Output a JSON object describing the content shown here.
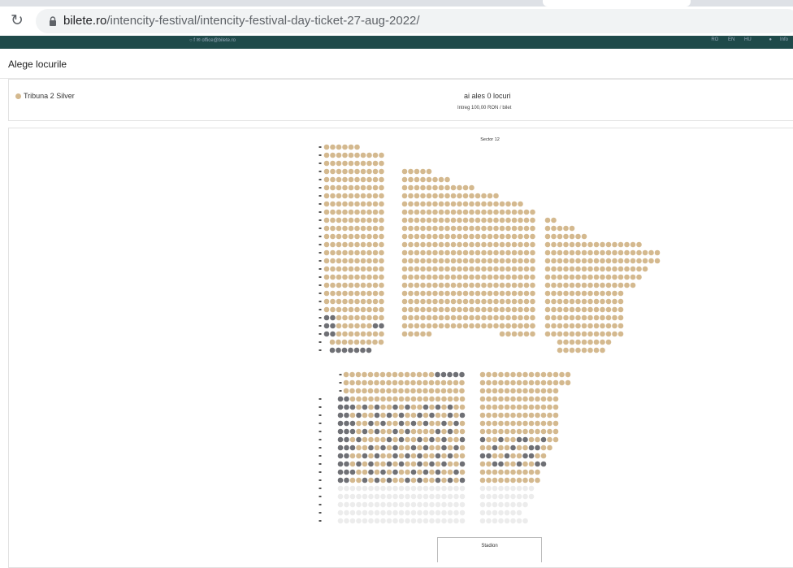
{
  "browser": {
    "url_host": "bilete.ro",
    "url_path": "/intencity-festival/intencity-festival-day-ticket-27-aug-2022/"
  },
  "site": {
    "social_email": "office@bilete.ro",
    "langs": [
      "RO",
      "EN",
      "HU"
    ],
    "info": "Info"
  },
  "page": {
    "title": "Alege locurile",
    "category": "Tribuna 2 Silver",
    "selected": "ai ales 0 locuri",
    "price": "Intreg 100,00 RON / bilet"
  },
  "map": {
    "sector": "Sector 12",
    "stage": "Stadion"
  },
  "colors": {
    "available": "#d4b98f",
    "occupied": "#6f7075",
    "unavailable": "#ececec"
  }
}
